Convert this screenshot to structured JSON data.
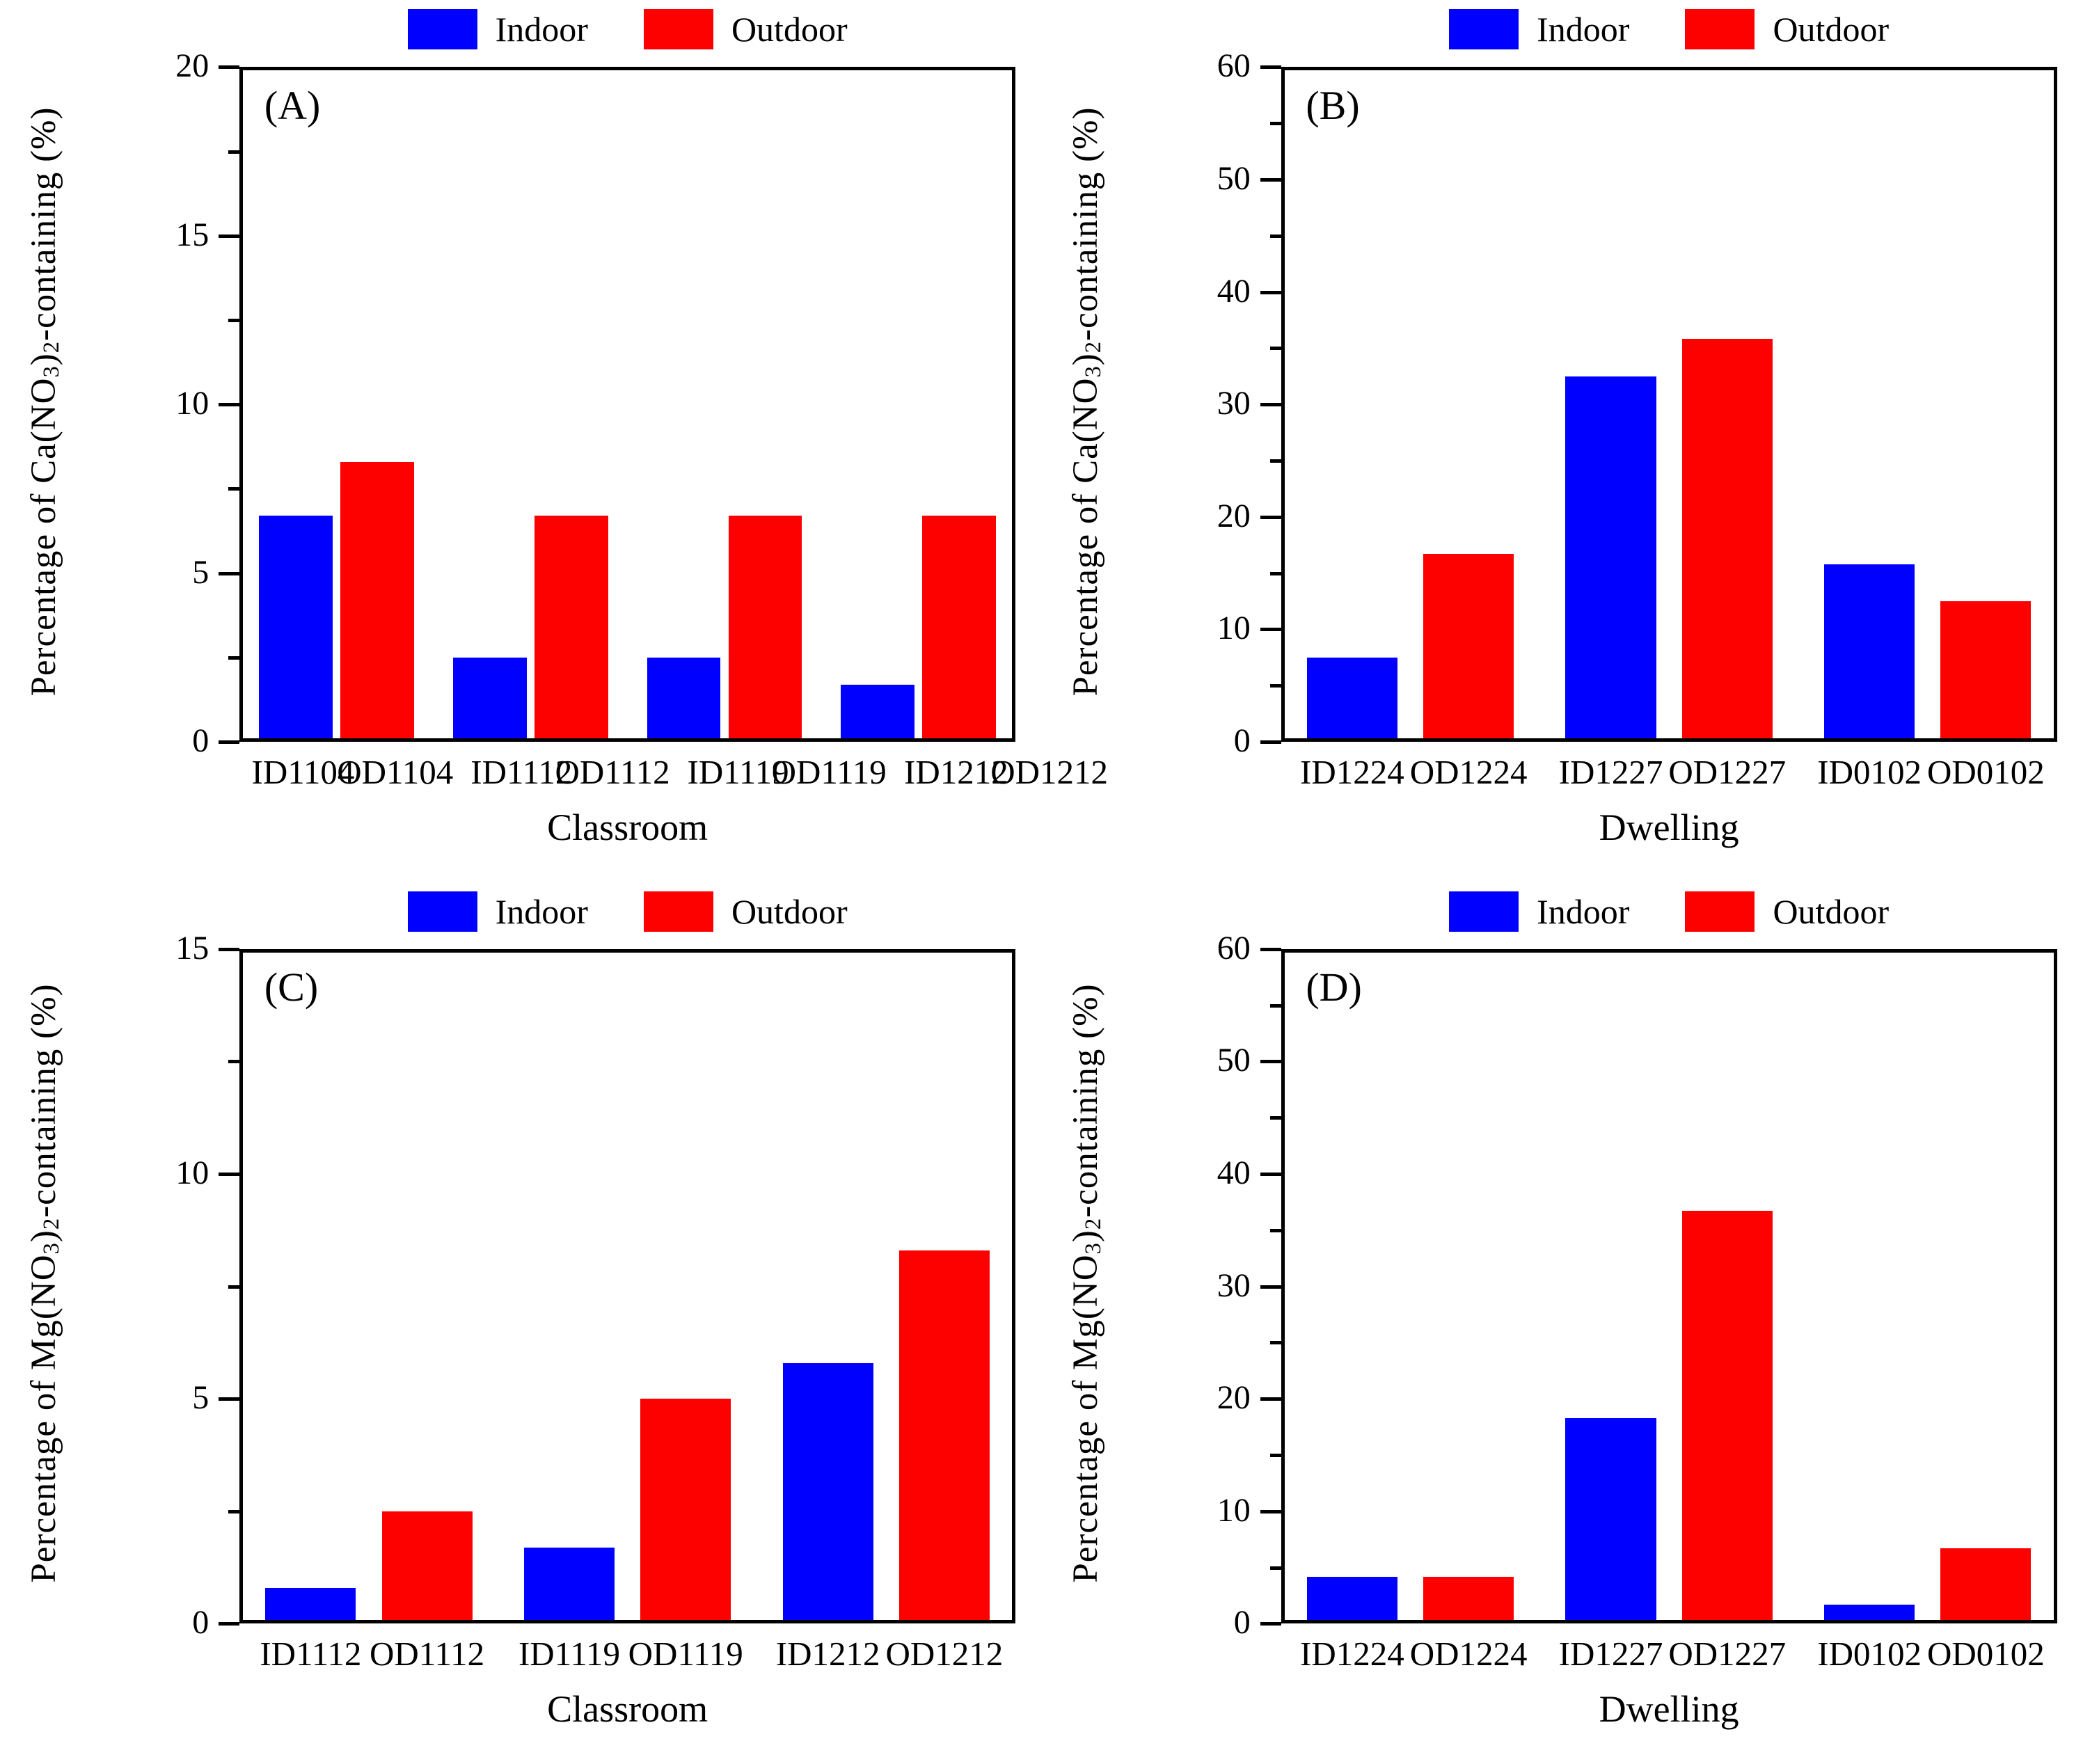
{
  "colors": {
    "Indoor": "#0000FE",
    "Outdoor": "#FD0000"
  },
  "chart_data": [
    {
      "type": "bar",
      "id": "A",
      "letter": "(A)",
      "legend": [
        "Indoor",
        "Outdoor"
      ],
      "legend_position": "top",
      "x_title": "Classroom",
      "ylabel": "Percentage of Ca(NO3)2-containing (%)",
      "y_title": [
        {
          "t": "Percentage of Ca(NO"
        },
        {
          "t": "3",
          "sub": true
        },
        {
          "t": ")"
        },
        {
          "t": "2",
          "sub": true
        },
        {
          "t": "-containing (%)"
        }
      ],
      "ylim": [
        0,
        20
      ],
      "y_major": 5,
      "y_minor": 2.5,
      "y_ticks": [
        "0",
        "5",
        "10",
        "15",
        "20"
      ],
      "grid": false,
      "groups": [
        {
          "bars": [
            {
              "label": "ID1104",
              "series": "Indoor",
              "value": 6.7
            },
            {
              "label": "OD1104",
              "series": "Outdoor",
              "value": 8.3
            }
          ]
        },
        {
          "bars": [
            {
              "label": "ID1112",
              "series": "Indoor",
              "value": 2.5
            },
            {
              "label": "OD1112",
              "series": "Outdoor",
              "value": 6.7
            }
          ]
        },
        {
          "bars": [
            {
              "label": "ID1119",
              "series": "Indoor",
              "value": 2.5
            },
            {
              "label": "OD1119",
              "series": "Outdoor",
              "value": 6.7
            }
          ]
        },
        {
          "bars": [
            {
              "label": "ID1212",
              "series": "Indoor",
              "value": 1.7
            },
            {
              "label": "OD1212",
              "series": "Outdoor",
              "value": 6.7
            }
          ]
        }
      ]
    },
    {
      "type": "bar",
      "id": "B",
      "letter": "(B)",
      "legend": [
        "Indoor",
        "Outdoor"
      ],
      "legend_position": "top",
      "x_title": "Dwelling",
      "ylabel": "Percentage of Ca(NO3)2-containing (%)",
      "y_title": [
        {
          "t": "Percentage of Ca(NO"
        },
        {
          "t": "3",
          "sub": true
        },
        {
          "t": ")"
        },
        {
          "t": "2",
          "sub": true
        },
        {
          "t": "-containing (%)"
        }
      ],
      "ylim": [
        0,
        60
      ],
      "y_major": 10,
      "y_minor": 5,
      "y_ticks": [
        "0",
        "10",
        "20",
        "30",
        "40",
        "50",
        "60"
      ],
      "grid": false,
      "groups": [
        {
          "bars": [
            {
              "label": "ID1224",
              "series": "Indoor",
              "value": 7.5
            },
            {
              "label": "OD1224",
              "series": "Outdoor",
              "value": 16.7
            }
          ]
        },
        {
          "bars": [
            {
              "label": "ID1227",
              "series": "Indoor",
              "value": 32.5
            },
            {
              "label": "OD1227",
              "series": "Outdoor",
              "value": 35.8
            }
          ]
        },
        {
          "bars": [
            {
              "label": "ID0102",
              "series": "Indoor",
              "value": 15.8
            },
            {
              "label": "OD0102",
              "series": "Outdoor",
              "value": 12.5
            }
          ]
        }
      ]
    },
    {
      "type": "bar",
      "id": "C",
      "letter": "(C)",
      "legend": [
        "Indoor",
        "Outdoor"
      ],
      "legend_position": "top",
      "x_title": "Classroom",
      "ylabel": "Percentage of Mg(NO3)2-containing (%)",
      "y_title": [
        {
          "t": "Percentage of Mg(NO"
        },
        {
          "t": "3",
          "sub": true
        },
        {
          "t": ")"
        },
        {
          "t": "2",
          "sub": true
        },
        {
          "t": "-containing (%)"
        }
      ],
      "ylim": [
        0,
        15
      ],
      "y_major": 5,
      "y_minor": 2.5,
      "y_ticks": [
        "0",
        "5",
        "10",
        "15"
      ],
      "grid": false,
      "groups": [
        {
          "bars": [
            {
              "label": "ID1112",
              "series": "Indoor",
              "value": 0.8
            },
            {
              "label": "OD1112",
              "series": "Outdoor",
              "value": 2.5
            }
          ]
        },
        {
          "bars": [
            {
              "label": "ID1119",
              "series": "Indoor",
              "value": 1.7
            },
            {
              "label": "OD1119",
              "series": "Outdoor",
              "value": 5.0
            }
          ]
        },
        {
          "bars": [
            {
              "label": "ID1212",
              "series": "Indoor",
              "value": 5.8
            },
            {
              "label": "OD1212",
              "series": "Outdoor",
              "value": 8.3
            }
          ]
        }
      ]
    },
    {
      "type": "bar",
      "id": "D",
      "letter": "(D)",
      "legend": [
        "Indoor",
        "Outdoor"
      ],
      "legend_position": "top",
      "x_title": "Dwelling",
      "ylabel": "Percentage of Mg(NO3)2-containing (%)",
      "y_title": [
        {
          "t": "Percentage of Mg(NO"
        },
        {
          "t": "3",
          "sub": true
        },
        {
          "t": ")"
        },
        {
          "t": "2",
          "sub": true
        },
        {
          "t": "-containing (%)"
        }
      ],
      "ylim": [
        0,
        60
      ],
      "y_major": 10,
      "y_minor": 5,
      "y_ticks": [
        "0",
        "10",
        "20",
        "30",
        "40",
        "50",
        "60"
      ],
      "grid": false,
      "groups": [
        {
          "bars": [
            {
              "label": "ID1224",
              "series": "Indoor",
              "value": 4.2
            },
            {
              "label": "OD1224",
              "series": "Outdoor",
              "value": 4.2
            }
          ]
        },
        {
          "bars": [
            {
              "label": "ID1227",
              "series": "Indoor",
              "value": 18.3
            },
            {
              "label": "OD1227",
              "series": "Outdoor",
              "value": 36.7
            }
          ]
        },
        {
          "bars": [
            {
              "label": "ID0102",
              "series": "Indoor",
              "value": 1.7
            },
            {
              "label": "OD0102",
              "series": "Outdoor",
              "value": 6.7
            }
          ]
        }
      ]
    }
  ]
}
